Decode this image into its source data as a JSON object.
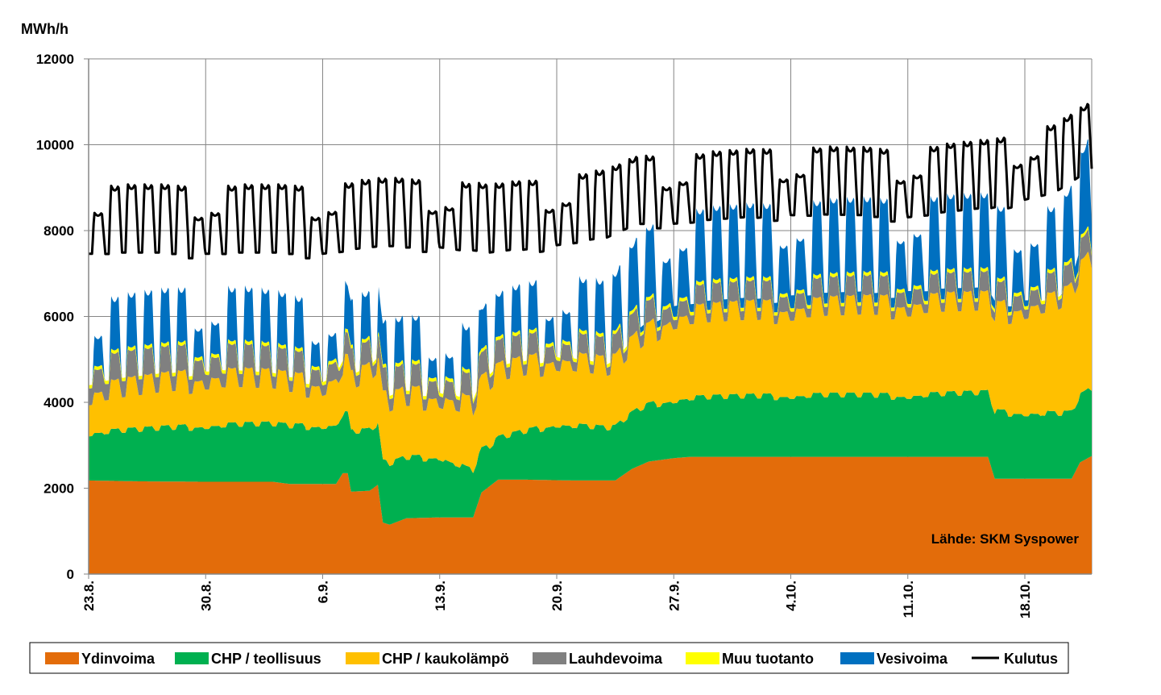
{
  "chart_data": {
    "type": "area",
    "title": "",
    "ylabel": "MWh/h",
    "xlabel": "",
    "ylim": [
      0,
      12000
    ],
    "yticks": [
      "0",
      "2000",
      "4000",
      "6000",
      "8000",
      "10000",
      "12000"
    ],
    "grid": true,
    "x_start_day": 0,
    "x_end_day": 60,
    "xticks": [
      {
        "day": 0,
        "label": "23.8."
      },
      {
        "day": 7,
        "label": "30.8."
      },
      {
        "day": 14,
        "label": "6.9."
      },
      {
        "day": 21,
        "label": "13.9."
      },
      {
        "day": 28,
        "label": "20.9."
      },
      {
        "day": 35,
        "label": "27.9."
      },
      {
        "day": 42,
        "label": "4.10."
      },
      {
        "day": 49,
        "label": "11.10."
      },
      {
        "day": 56,
        "label": "18.10."
      }
    ],
    "source_note": "Lähde: SKM Syspower",
    "stack_order": [
      "Ydinvoima",
      "CHP / teollisuus",
      "CHP / kaukolämpö",
      "Lauhdevoima",
      "Muu tuotanto",
      "Vesivoima"
    ],
    "series": [
      {
        "name": "Ydinvoima",
        "color": "#e36c0a",
        "kind": "stacked-area",
        "breaks": [
          [
            0,
            2180
          ],
          [
            3,
            2160
          ],
          [
            7,
            2150
          ],
          [
            11,
            2150
          ],
          [
            12,
            2100
          ],
          [
            14.8,
            2100
          ],
          [
            15.2,
            2350
          ],
          [
            15.5,
            2350
          ],
          [
            15.7,
            1920
          ],
          [
            16.8,
            1940
          ],
          [
            17.3,
            2080
          ],
          [
            17.6,
            1200
          ],
          [
            18,
            1150
          ],
          [
            19,
            1300
          ],
          [
            21,
            1320
          ],
          [
            23,
            1320
          ],
          [
            23.5,
            1900
          ],
          [
            24.5,
            2200
          ],
          [
            26,
            2200
          ],
          [
            29,
            2180
          ],
          [
            31.5,
            2180
          ],
          [
            32.5,
            2450
          ],
          [
            33.5,
            2620
          ],
          [
            35,
            2700
          ],
          [
            36,
            2730
          ],
          [
            42,
            2730
          ],
          [
            49,
            2730
          ],
          [
            53.8,
            2730
          ],
          [
            54.2,
            2220
          ],
          [
            56.5,
            2220
          ],
          [
            57.5,
            2220
          ],
          [
            58.8,
            2220
          ],
          [
            59.3,
            2600
          ],
          [
            60,
            2750
          ]
        ],
        "daily_amp": 0,
        "weekly_amp": 0
      },
      {
        "name": "CHP / teollisuus",
        "color": "#00b050",
        "kind": "stacked-area",
        "breaks": [
          [
            0,
            1100
          ],
          [
            7,
            1300
          ],
          [
            14,
            1350
          ],
          [
            17.5,
            1400
          ],
          [
            21,
            1400
          ],
          [
            24,
            900
          ],
          [
            28,
            1300
          ],
          [
            31,
            1200
          ],
          [
            33,
            1300
          ],
          [
            35,
            1350
          ],
          [
            42,
            1420
          ],
          [
            49,
            1420
          ],
          [
            53.8,
            1480
          ],
          [
            54.2,
            1550
          ],
          [
            58,
            1500
          ],
          [
            60,
            1550
          ]
        ],
        "daily_amp": 60,
        "weekly_amp": 60
      },
      {
        "name": "CHP / kaukolämpö",
        "color": "#ffc000",
        "kind": "stacked-area",
        "breaks": [
          [
            0,
            900
          ],
          [
            7,
            1100
          ],
          [
            14,
            950
          ],
          [
            17.5,
            1400
          ],
          [
            21,
            1400
          ],
          [
            24,
            1500
          ],
          [
            28,
            1500
          ],
          [
            31,
            1400
          ],
          [
            33,
            1600
          ],
          [
            35,
            1900
          ],
          [
            42,
            2000
          ],
          [
            49,
            2100
          ],
          [
            53.8,
            2100
          ],
          [
            54.2,
            2300
          ],
          [
            58,
            2600
          ],
          [
            60,
            3000
          ]
        ],
        "daily_amp": 180,
        "weekly_amp": 120
      },
      {
        "name": "Lauhdevoima",
        "color": "#808080",
        "kind": "stacked-area",
        "breaks": [
          [
            0,
            500
          ],
          [
            7,
            450
          ],
          [
            14,
            350
          ],
          [
            17.5,
            400
          ],
          [
            21,
            380
          ],
          [
            24,
            400
          ],
          [
            28,
            350
          ],
          [
            31,
            300
          ],
          [
            33,
            400
          ],
          [
            35,
            320
          ],
          [
            42,
            320
          ],
          [
            49,
            320
          ],
          [
            53.8,
            320
          ],
          [
            58,
            330
          ],
          [
            60,
            380
          ]
        ],
        "daily_amp": 130,
        "weekly_amp": 50
      },
      {
        "name": "Muu tuotanto",
        "color": "#ffff00",
        "kind": "stacked-area",
        "breaks": [
          [
            0,
            80
          ],
          [
            60,
            80
          ]
        ],
        "daily_amp": 0,
        "weekly_amp": 0
      },
      {
        "name": "Vesivoima",
        "color": "#0070c0",
        "kind": "stacked-area",
        "breaks": [
          [
            0,
            400
          ],
          [
            7,
            450
          ],
          [
            14,
            350
          ],
          [
            17.5,
            200
          ],
          [
            21,
            250
          ],
          [
            24,
            150
          ],
          [
            28,
            400
          ],
          [
            31,
            400
          ],
          [
            33,
            800
          ],
          [
            35,
            850
          ],
          [
            42,
            900
          ],
          [
            49,
            900
          ],
          [
            53.8,
            900
          ],
          [
            58,
            600
          ],
          [
            60,
            1300
          ]
        ],
        "daily_amp": 750,
        "weekly_amp": 250
      },
      {
        "name": "Kulutus",
        "color": "#000000",
        "kind": "line",
        "breaks": [
          [
            0,
            8150
          ],
          [
            7,
            8150
          ],
          [
            14,
            8150
          ],
          [
            17.5,
            8300
          ],
          [
            21,
            8300
          ],
          [
            24,
            8150
          ],
          [
            28,
            8350
          ],
          [
            31,
            8500
          ],
          [
            33,
            8850
          ],
          [
            35,
            8850
          ],
          [
            42,
            9050
          ],
          [
            49,
            9000
          ],
          [
            53.8,
            9200
          ],
          [
            58,
            9600
          ],
          [
            60,
            10100
          ]
        ],
        "daily_amp": 800,
        "weekly_amp": 350
      }
    ]
  }
}
